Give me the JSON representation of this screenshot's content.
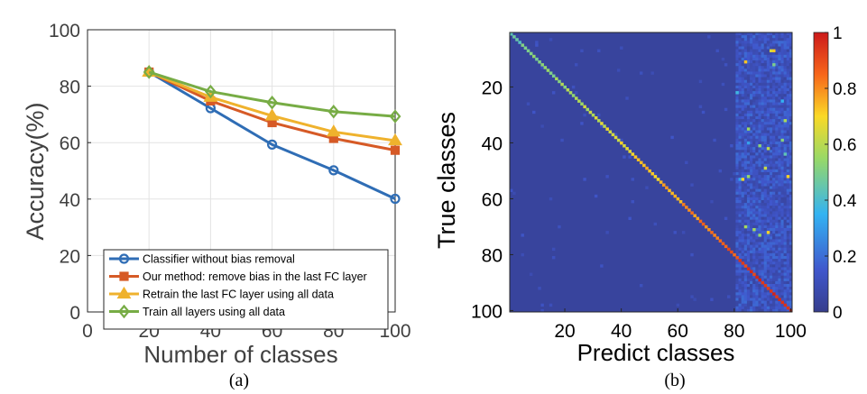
{
  "chart_data": [
    {
      "type": "line",
      "title": "",
      "xlabel": "Number of classes",
      "ylabel": "Accuracy(%)",
      "caption": "(a)",
      "xlim": [
        0,
        100
      ],
      "ylim": [
        0,
        100
      ],
      "xticks": [
        0,
        20,
        40,
        60,
        80,
        100
      ],
      "yticks": [
        0,
        20,
        40,
        60,
        80,
        100
      ],
      "grid": true,
      "legend_position": "bottom-right",
      "x": [
        20,
        40,
        60,
        80,
        100
      ],
      "series": [
        {
          "name": "Classifier without bias removal",
          "color": "#2f6db5",
          "marker": "circle",
          "values": [
            85,
            72.2,
            59.3,
            50.2,
            40.1
          ]
        },
        {
          "name": "Our method: remove bias in the last FC layer",
          "color": "#d65a26",
          "marker": "square",
          "values": [
            85,
            74.8,
            67.1,
            61.5,
            57.3
          ]
        },
        {
          "name": "Retrain the last FC layer using all data",
          "color": "#efb22d",
          "marker": "triangle",
          "values": [
            85,
            76.1,
            69.5,
            63.8,
            60.7
          ]
        },
        {
          "name": "Train all layers using all data",
          "color": "#77ac45",
          "marker": "diamond",
          "values": [
            85,
            78.1,
            74.2,
            71.0,
            69.3
          ]
        }
      ]
    },
    {
      "type": "heatmap",
      "title": "",
      "xlabel": "Predict classes",
      "ylabel": "True classes",
      "caption": "(b)",
      "n_classes": 100,
      "xticks": [
        20,
        40,
        60,
        80,
        100
      ],
      "yticks": [
        20,
        40,
        60,
        80,
        100
      ],
      "colorbar": {
        "min": 0,
        "max": 1,
        "ticks": [
          0,
          0.2,
          0.4,
          0.6,
          0.8,
          1
        ]
      },
      "background_value": 0.04,
      "diagonal_value_start": 0.45,
      "diagonal_value_end": 1.0,
      "bias_columns_start": 80,
      "bias_columns_end": 100,
      "bias_value_range": [
        0.05,
        0.2
      ]
    }
  ]
}
